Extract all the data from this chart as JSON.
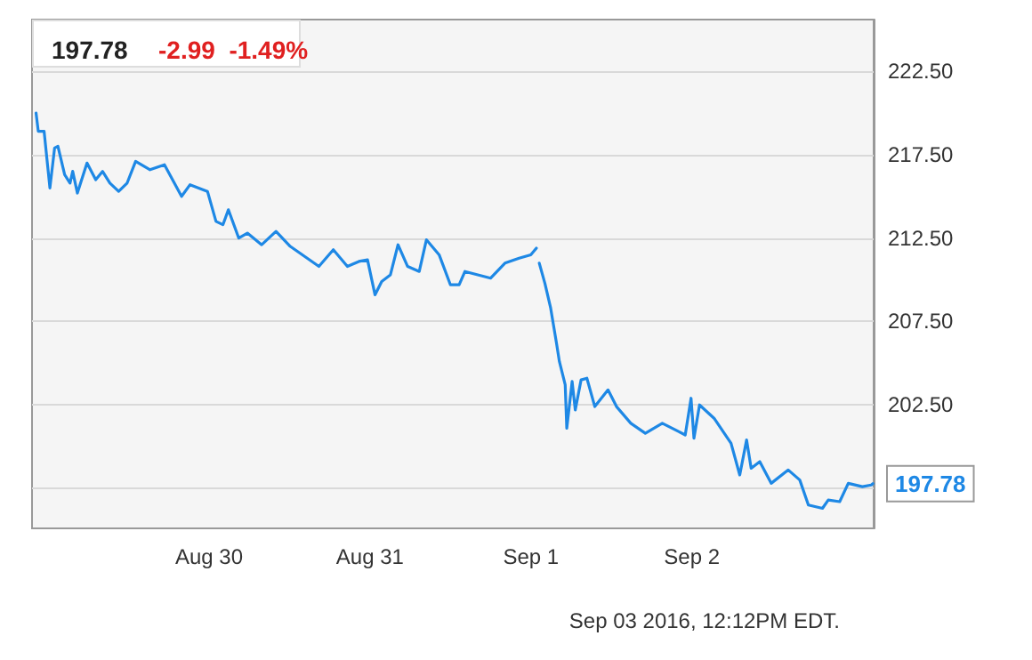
{
  "chart_data": {
    "type": "line",
    "title": "197.78",
    "subtitle": "-2.99  -1.49%",
    "x": [
      "2016-08-28T22:12",
      "2016-08-28T22:32",
      "2016-08-28T23:24",
      "2016-08-29T00:16",
      "2016-08-29T00:58",
      "2016-08-29T01:28",
      "2016-08-29T02:28",
      "2016-08-29T03:16",
      "2016-08-29T03:40",
      "2016-08-29T04:22",
      "2016-08-29T05:48",
      "2016-08-29T07:06",
      "2016-08-29T08:07",
      "2016-08-29T09:13",
      "2016-08-29T10:31",
      "2016-08-29T11:47",
      "2016-08-29T13:03",
      "2016-08-29T15:12",
      "2016-08-29T17:21",
      "2016-08-29T19:54",
      "2016-08-29T21:10",
      "2016-08-29T23:46",
      "2016-08-30T01:02",
      "2016-08-30T02:04",
      "2016-08-30T02:53",
      "2016-08-30T04:26",
      "2016-08-30T05:43",
      "2016-08-30T07:51",
      "2016-08-30T09:59",
      "2016-08-30T12:07",
      "2016-08-30T16:23",
      "2016-08-30T18:32",
      "2016-08-30T20:38",
      "2016-08-30T22:21",
      "2016-08-30T23:38",
      "2016-08-31T00:45",
      "2016-08-31T01:45",
      "2016-08-31T03:03",
      "2016-08-31T04:11",
      "2016-08-31T05:37",
      "2016-08-31T07:21",
      "2016-08-31T08:25",
      "2016-08-31T10:19",
      "2016-08-31T12:00",
      "2016-08-31T13:18",
      "2016-08-31T14:10",
      "2016-08-31T18:00",
      "2016-08-31T20:08",
      "2016-08-31T22:15",
      "2016-08-31T23:59",
      "2016-09-01T00:49",
      "2016-09-01T01:05",
      "2016-09-01T01:15",
      "2016-09-01T02:05",
      "2016-09-01T02:57",
      "2016-09-01T03:49",
      "2016-09-01T04:15",
      "2016-09-01T05:07",
      "2016-09-01T05:21",
      "2016-09-01T06:09",
      "2016-09-01T06:37",
      "2016-09-01T07:29",
      "2016-09-01T08:21",
      "2016-09-01T09:32",
      "2016-09-01T11:30",
      "2016-09-01T12:46",
      "2016-09-01T14:54",
      "2016-09-01T17:04",
      "2016-09-01T19:36",
      "2016-09-01T23:01",
      "2016-09-01T23:53",
      "2016-09-02T00:19",
      "2016-09-02T01:09",
      "2016-09-02T03:19",
      "2016-09-02T05:51",
      "2016-09-02T07:09",
      "2016-09-02T08:10",
      "2016-09-02T08:51",
      "2016-09-02T10:08",
      "2016-09-02T11:50",
      "2016-09-02T14:23",
      "2016-09-02T16:06",
      "2016-09-02T17:23",
      "2016-09-02T19:29",
      "2016-09-02T20:21",
      "2016-09-02T22:03",
      "2016-09-02T23:20",
      "2016-09-03T01:26",
      "2016-09-03T02:46",
      "2016-09-03T03:00"
    ],
    "series": [
      {
        "color": "#1e88e5",
        "values": [
          220.0,
          218.9,
          218.9,
          215.5,
          217.9,
          218.0,
          216.3,
          215.8,
          216.5,
          215.2,
          217.0,
          216.0,
          216.5,
          215.8,
          215.3,
          215.8,
          217.1,
          216.6,
          216.9,
          215.0,
          215.7,
          215.3,
          213.5,
          213.3,
          214.2,
          212.5,
          212.8,
          212.1,
          212.9,
          212.0,
          210.8,
          211.8,
          210.8,
          211.1,
          211.2,
          209.1,
          209.9,
          210.3,
          212.1,
          210.8,
          210.5,
          212.4,
          211.5,
          209.7,
          209.7,
          210.5,
          210.1,
          211.0,
          211.3,
          211.5,
          211.9,
          null,
          211.0,
          209.8,
          208.3,
          206.2,
          205.1,
          203.7,
          201.1,
          203.9,
          202.2,
          204.0,
          204.1,
          202.4,
          203.4,
          202.4,
          201.4,
          200.8,
          201.4,
          200.7,
          202.9,
          200.5,
          202.5,
          201.7,
          200.2,
          198.3,
          200.4,
          198.7,
          199.1,
          197.8,
          198.6,
          198.0,
          196.5,
          196.3,
          196.8,
          196.7,
          197.8,
          197.6,
          197.7,
          197.78
        ]
      }
    ],
    "xlim": [
      "2016-08-28T21:36",
      "2016-09-03T03:07"
    ],
    "xticks": [
      {
        "value": "2016-08-30T00:00",
        "label": "Aug 30"
      },
      {
        "value": "2016-08-31T00:00",
        "label": "Aug 31"
      },
      {
        "value": "2016-09-01T00:00",
        "label": "Sep 1"
      },
      {
        "value": "2016-09-02T00:00",
        "label": "Sep 2"
      }
    ],
    "ylim": [
      195.1,
      225.6
    ],
    "yticks": [
      {
        "value": 197.5,
        "label": null
      },
      {
        "value": 202.5,
        "label": "202.50"
      },
      {
        "value": 207.5,
        "label": "207.50"
      },
      {
        "value": 212.5,
        "label": "212.50"
      },
      {
        "value": 217.5,
        "label": "217.50"
      },
      {
        "value": 222.5,
        "label": "222.50"
      }
    ],
    "grid": true,
    "marker": "none",
    "line_style": "solid",
    "annotations": [
      {
        "text": "197.78",
        "x": "2016-09-03T03:00",
        "y": 197.78
      },
      "Sep 03 2016, 12:12PM EDT."
    ]
  }
}
